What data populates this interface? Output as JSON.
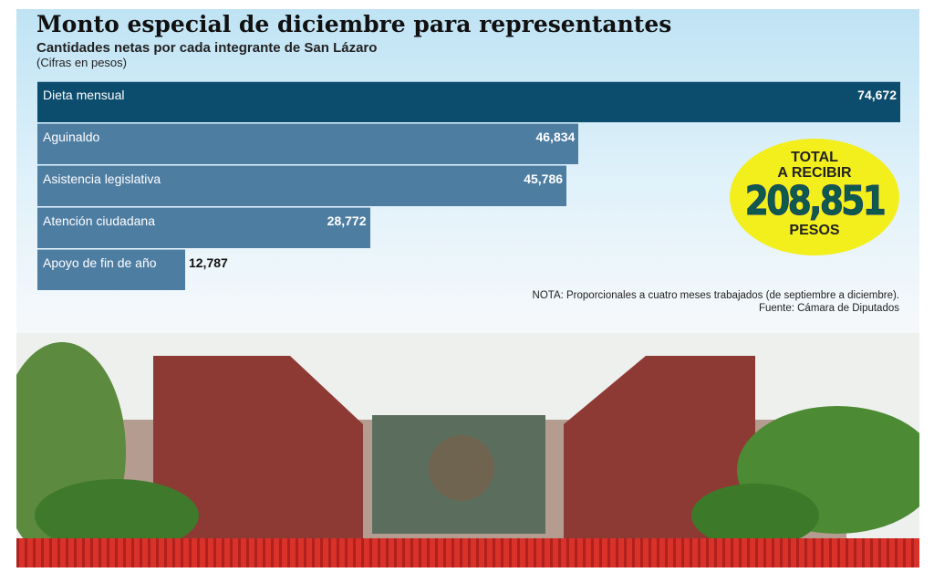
{
  "chart_data": {
    "type": "bar",
    "orientation": "horizontal",
    "title": "Monto especial de diciembre para representantes",
    "subtitle": "Cantidades netas por cada integrante de San Lázaro",
    "units": "(Cifras en pesos)",
    "categories": [
      "Dieta mensual",
      "Aguinaldo",
      "Asistencia legislativa",
      "Atención ciudadana",
      "Apoyo de fin de año"
    ],
    "values": [
      74672,
      46834,
      45786,
      28772,
      12787
    ],
    "value_labels": [
      "74,672",
      "46,834",
      "45,786",
      "28,772",
      "12,787"
    ],
    "colors": {
      "first_bar": "#0c4c6c",
      "bars": "#4e7da2",
      "badge": "#f2ef1c"
    },
    "grid": false
  },
  "total_badge": {
    "line1": "TOTAL",
    "line2": "A RECIBIR",
    "amount": "208,851",
    "unit": "PESOS"
  },
  "note": "NOTA: Proporcionales a cuatro meses trabajados (de septiembre a diciembre).",
  "source": "Fuente: Cámara de Diputados"
}
